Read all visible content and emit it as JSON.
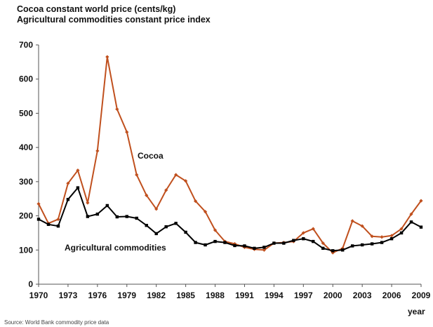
{
  "chart_data": {
    "type": "line",
    "title_lines": [
      "Cocoa constant world price (cents/kg)",
      "Agricultural commodities constant price index"
    ],
    "xlabel": "year",
    "ylabel": "",
    "xlim": [
      1970,
      2009
    ],
    "ylim": [
      0,
      700
    ],
    "yticks": [
      0,
      100,
      200,
      300,
      400,
      500,
      600,
      700
    ],
    "xticks": [
      1970,
      1973,
      1976,
      1979,
      1982,
      1985,
      1988,
      1991,
      1994,
      1997,
      2000,
      2003,
      2006,
      2009
    ],
    "grid": false,
    "x": [
      1970,
      1971,
      1972,
      1973,
      1974,
      1975,
      1976,
      1977,
      1978,
      1979,
      1980,
      1981,
      1982,
      1983,
      1984,
      1985,
      1986,
      1987,
      1988,
      1989,
      1990,
      1991,
      1992,
      1993,
      1994,
      1995,
      1996,
      1997,
      1998,
      1999,
      2000,
      2001,
      2002,
      2003,
      2004,
      2005,
      2006,
      2007,
      2008,
      2009
    ],
    "series": [
      {
        "name": "Cocoa",
        "color": "#c0501e",
        "values": [
          235,
          178,
          190,
          295,
          333,
          238,
          390,
          665,
          512,
          445,
          320,
          260,
          220,
          275,
          320,
          302,
          243,
          212,
          158,
          125,
          118,
          108,
          102,
          100,
          120,
          122,
          125,
          150,
          162,
          120,
          92,
          105,
          185,
          170,
          140,
          138,
          142,
          162,
          205,
          244
        ]
      },
      {
        "name": "Agricultural commodities",
        "color": "#000000",
        "values": [
          190,
          175,
          170,
          248,
          282,
          198,
          205,
          230,
          197,
          198,
          193,
          172,
          148,
          168,
          178,
          152,
          122,
          115,
          125,
          122,
          113,
          112,
          105,
          108,
          120,
          120,
          128,
          133,
          125,
          105,
          98,
          100,
          112,
          115,
          118,
          122,
          133,
          150,
          182,
          167
        ]
      }
    ]
  },
  "source_note": "Source: World Bank commodity price data"
}
